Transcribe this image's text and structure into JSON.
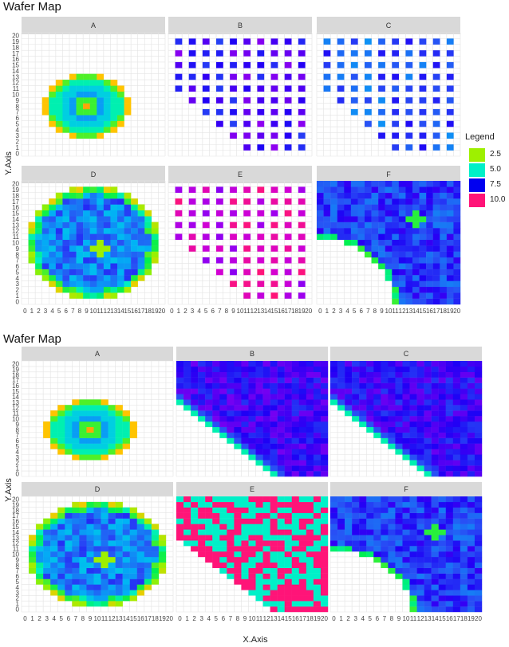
{
  "chart_data": [
    {
      "type": "heatmap",
      "title": "Wafer Map",
      "xlabel": "",
      "ylabel": "Y.Axis",
      "x_ticks": [
        "0",
        "1",
        "2",
        "3",
        "4",
        "5",
        "6",
        "7",
        "8",
        "9",
        "10",
        "11",
        "12",
        "13",
        "14",
        "15",
        "16",
        "17",
        "18",
        "19",
        "20"
      ],
      "y_ticks": [
        "0",
        "1",
        "2",
        "3",
        "4",
        "5",
        "6",
        "7",
        "8",
        "9",
        "10",
        "11",
        "12",
        "13",
        "14",
        "15",
        "16",
        "17",
        "18",
        "19",
        "20"
      ],
      "xlim": [
        0,
        20
      ],
      "ylim": [
        0,
        20
      ],
      "grid": true,
      "legend_position": "right",
      "legend": {
        "title": "Legend",
        "entries": [
          "2.5",
          "5.0",
          "7.5",
          "10.0"
        ]
      },
      "panels": [
        {
          "name": "A",
          "pattern": "ring-circle",
          "center": [
            9,
            8
          ],
          "radius": 6.2,
          "value_range": [
            1,
            10
          ]
        },
        {
          "name": "B",
          "pattern": "lattice-quadrant",
          "cell_spacing": 2,
          "dominant_value": 8.5
        },
        {
          "name": "C",
          "pattern": "lattice-quadrant",
          "cell_spacing": 2,
          "dominant_value": 7.5
        },
        {
          "name": "D",
          "pattern": "noisy-circle",
          "center": [
            10,
            10
          ],
          "radius": 9.8
        },
        {
          "name": "E",
          "pattern": "lattice-quadrant",
          "cell_spacing": 2,
          "dominant_value": 10.0
        },
        {
          "name": "F",
          "pattern": "noisy-quadrant",
          "hotspot": [
            14,
            14
          ],
          "dominant_value": 7.8
        }
      ]
    },
    {
      "type": "heatmap",
      "title": "Wafer Map",
      "xlabel": "X.Axis",
      "ylabel": "Y.Axis",
      "x_ticks": [
        "0",
        "1",
        "2",
        "3",
        "4",
        "5",
        "6",
        "7",
        "8",
        "9",
        "10",
        "11",
        "12",
        "13",
        "14",
        "15",
        "16",
        "17",
        "18",
        "19",
        "20"
      ],
      "y_ticks": [
        "0",
        "1",
        "2",
        "3",
        "4",
        "5",
        "6",
        "7",
        "8",
        "9",
        "10",
        "11",
        "12",
        "13",
        "14",
        "15",
        "16",
        "17",
        "18",
        "19",
        "20"
      ],
      "xlim": [
        0,
        20
      ],
      "ylim": [
        0,
        20
      ],
      "grid": true,
      "legend_position": "none",
      "panels": [
        {
          "name": "A",
          "pattern": "ring-circle",
          "center": [
            9,
            8
          ],
          "radius": 6.2
        },
        {
          "name": "B",
          "pattern": "filled-quadrant",
          "dominant_value": 8.3
        },
        {
          "name": "C",
          "pattern": "filled-quadrant",
          "dominant_value": 8.2
        },
        {
          "name": "D",
          "pattern": "noisy-circle",
          "center": [
            10,
            10
          ],
          "radius": 9.8
        },
        {
          "name": "E",
          "pattern": "red-cyan-quadrant",
          "dominant_value": 10.0
        },
        {
          "name": "F",
          "pattern": "noisy-quadrant",
          "hotspot": [
            14,
            14
          ],
          "dominant_value": 7.8
        }
      ]
    }
  ],
  "colors": {
    "scale": [
      "#9ef000",
      "#00f0c8",
      "#0000f0",
      "#ff1478"
    ],
    "strip_bg": "#d9d9d9",
    "grid": "#e3e3e3",
    "panel_bg": "#ffffff",
    "stops": [
      {
        "v": 1,
        "c": "#ff2a2a"
      },
      {
        "v": 2,
        "c": "#ffc400"
      },
      {
        "v": 2.6,
        "c": "#9ef000"
      },
      {
        "v": 3.4,
        "c": "#00f050"
      },
      {
        "v": 4.4,
        "c": "#00f0c8"
      },
      {
        "v": 5.5,
        "c": "#00b4f5"
      },
      {
        "v": 6.8,
        "c": "#2850f5"
      },
      {
        "v": 7.6,
        "c": "#1e00f5"
      },
      {
        "v": 8.6,
        "c": "#9b00f0"
      },
      {
        "v": 9.3,
        "c": "#d400d2"
      },
      {
        "v": 10,
        "c": "#ff1478"
      }
    ]
  }
}
